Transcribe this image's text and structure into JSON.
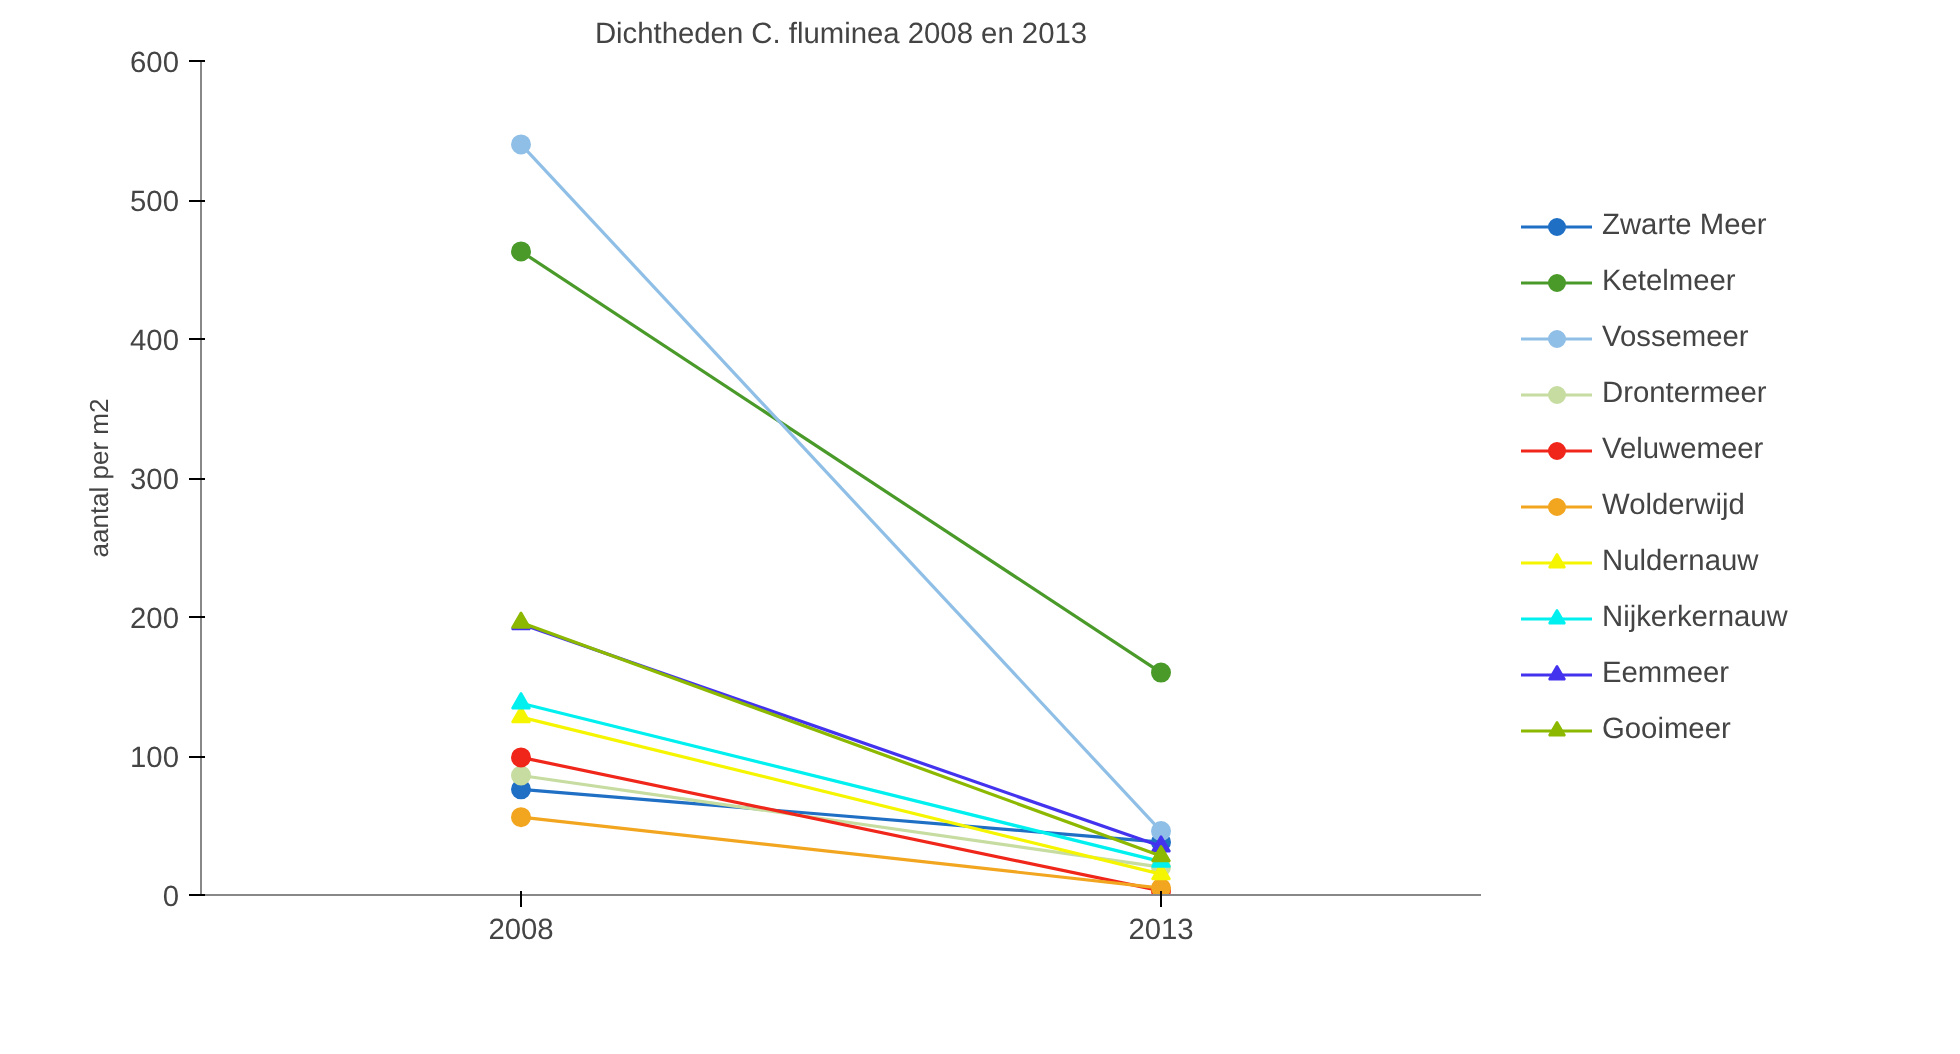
{
  "chart_data": {
    "type": "line",
    "title": "Dichtheden C. fluminea 2008 en 2013",
    "ylabel": "aantal per m2",
    "categories": [
      "2008",
      "2013"
    ],
    "ylim": [
      0,
      600
    ],
    "yticks": [
      0,
      100,
      200,
      300,
      400,
      500,
      600
    ],
    "grid": false,
    "legend": "right",
    "line_style": "solid",
    "series": [
      {
        "name": "Zwarte Meer",
        "color": "#1f6fc5",
        "marker": "circle",
        "values": [
          76,
          38
        ]
      },
      {
        "name": "Ketelmeer",
        "color": "#4a9a2a",
        "marker": "circle",
        "values": [
          463,
          160
        ]
      },
      {
        "name": "Vossemeer",
        "color": "#8fbfe6",
        "marker": "circle",
        "values": [
          540,
          46
        ]
      },
      {
        "name": "Drontermeer",
        "color": "#c6dca0",
        "marker": "circle",
        "values": [
          86,
          20
        ]
      },
      {
        "name": "Veluwemeer",
        "color": "#f0261a",
        "marker": "circle",
        "values": [
          99,
          3
        ]
      },
      {
        "name": "Wolderwijd",
        "color": "#f2a51f",
        "marker": "circle",
        "values": [
          56,
          5
        ]
      },
      {
        "name": "Nuldernauw",
        "color": "#f5f500",
        "marker": "triangle",
        "values": [
          128,
          15
        ]
      },
      {
        "name": "Nijkerkernauw",
        "color": "#00f0f0",
        "marker": "triangle",
        "values": [
          138,
          24
        ]
      },
      {
        "name": "Eemmeer",
        "color": "#4433ee",
        "marker": "triangle",
        "values": [
          195,
          35
        ]
      },
      {
        "name": "Gooimeer",
        "color": "#8cb800",
        "marker": "triangle",
        "values": [
          196,
          28
        ]
      }
    ]
  }
}
